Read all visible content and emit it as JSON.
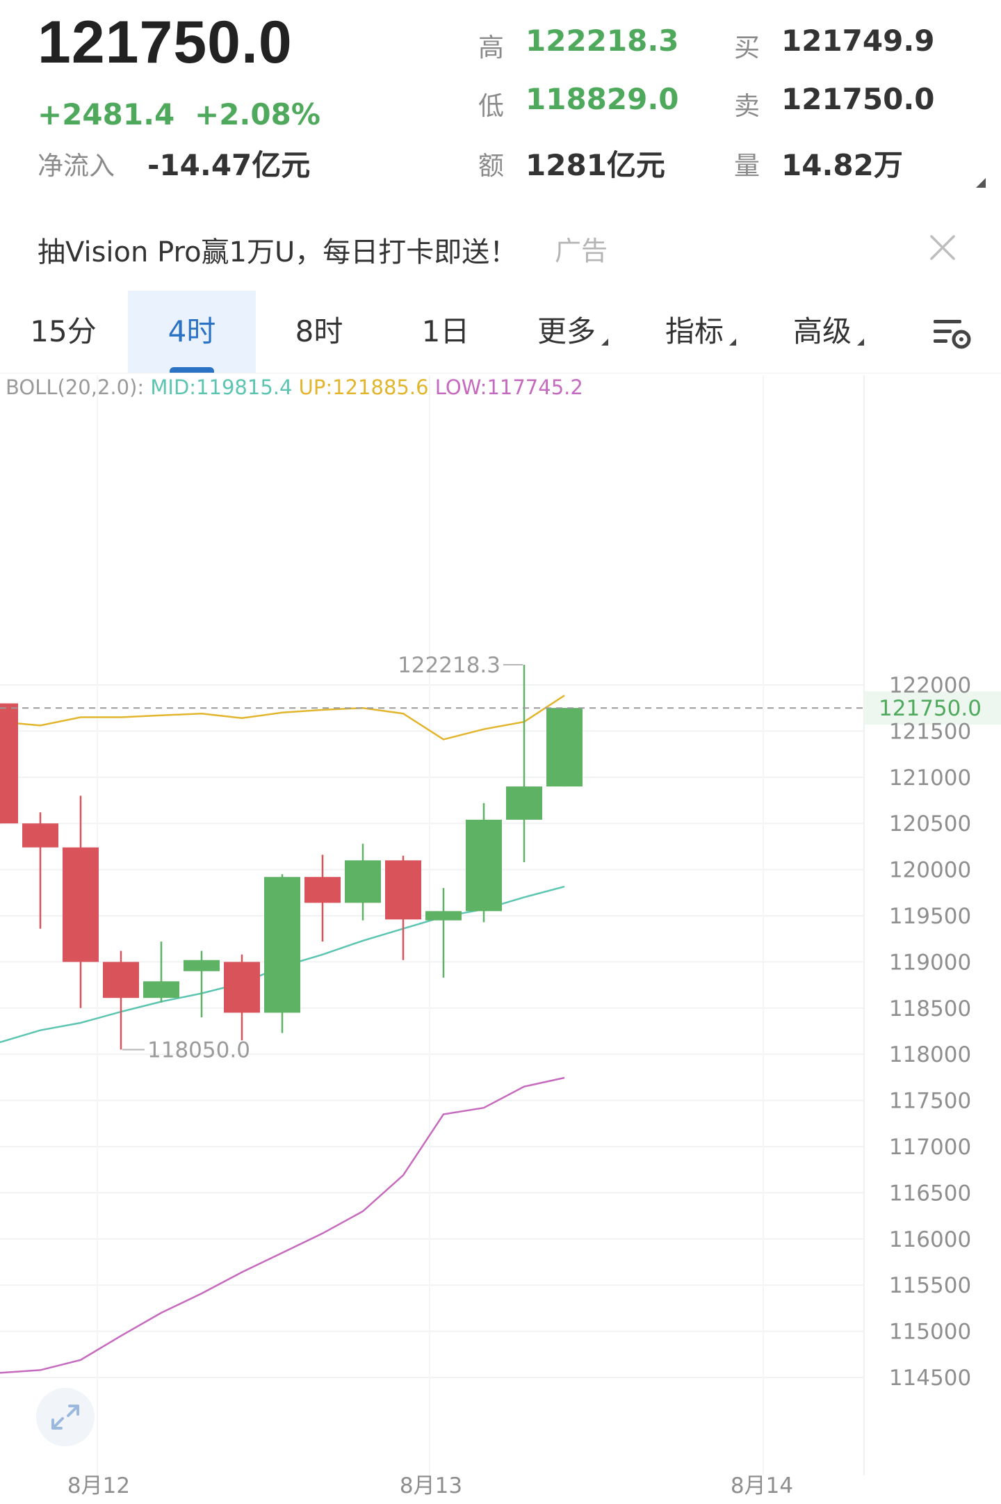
{
  "quote": {
    "last_price": "121750.0",
    "change": "+2481.4",
    "change_pct": "+2.08%",
    "net_inflow_label": "净流入",
    "net_inflow_value": "-14.47亿元"
  },
  "stats": {
    "high_label": "高",
    "high_value": "122218.3",
    "low_label": "低",
    "low_value": "118829.0",
    "amount_label": "额",
    "amount_value": "1281亿元",
    "bid_label": "买",
    "bid_value": "121749.9",
    "ask_label": "卖",
    "ask_value": "121750.0",
    "volume_label": "量",
    "volume_value": "14.82万"
  },
  "ad": {
    "text": "抽Vision Pro赢1万U，每日打卡即送！",
    "tag": "广告"
  },
  "tabs": [
    {
      "label": "15分",
      "active": false
    },
    {
      "label": "4时",
      "active": true
    },
    {
      "label": "8时",
      "active": false
    },
    {
      "label": "1日",
      "active": false
    },
    {
      "label": "更多",
      "active": false,
      "dropdown": true
    },
    {
      "label": "指标",
      "active": false,
      "dropdown": true
    },
    {
      "label": "高级",
      "active": false,
      "dropdown": true
    }
  ],
  "boll": {
    "prefix": "BOLL(20,2.0):",
    "mid": "MID:119815.4",
    "up": "UP:121885.6",
    "low": "LOW:117745.2"
  },
  "colors": {
    "up": "#5db264",
    "down": "#d9545a",
    "mid_line": "#5bc5b1",
    "upper_line": "#e2b52c",
    "lower_line": "#c56abf",
    "active_tab": "#2b72c4"
  },
  "icons": {
    "close": "close-icon",
    "settings": "chart-settings-icon",
    "expand": "expand-icon"
  },
  "chart_data": {
    "type": "candlestick",
    "y_ticks": [
      122000,
      121500,
      121000,
      120500,
      120000,
      119500,
      119000,
      118500,
      118000,
      117500,
      117000,
      116500,
      116000,
      115500,
      115000,
      114500
    ],
    "ylim": [
      114400,
      123400
    ],
    "x_labels": [
      "8月12",
      "8月13",
      "8月14"
    ],
    "current_price_label": "121750.0",
    "high_annotation": "122218.3",
    "low_annotation": "118050.0",
    "candles": [
      {
        "open": 121800,
        "close": 120500,
        "high": 121800,
        "low": 120500
      },
      {
        "open": 120500,
        "close": 120240,
        "high": 120620,
        "low": 119360
      },
      {
        "open": 120240,
        "close": 119000,
        "high": 120800,
        "low": 118500
      },
      {
        "open": 119000,
        "close": 118610,
        "high": 119120,
        "low": 118050
      },
      {
        "open": 118610,
        "close": 118790,
        "high": 119220,
        "low": 118560
      },
      {
        "open": 118900,
        "close": 119020,
        "high": 119120,
        "low": 118400
      },
      {
        "open": 119000,
        "close": 118450,
        "high": 119080,
        "low": 118150
      },
      {
        "open": 118450,
        "close": 119920,
        "high": 119950,
        "low": 118230
      },
      {
        "open": 119920,
        "close": 119640,
        "high": 120160,
        "low": 119220
      },
      {
        "open": 119640,
        "close": 120100,
        "high": 120280,
        "low": 119450
      },
      {
        "open": 120100,
        "close": 119460,
        "high": 120150,
        "low": 119020
      },
      {
        "open": 119450,
        "close": 119550,
        "high": 119800,
        "low": 118830
      },
      {
        "open": 119550,
        "close": 120540,
        "high": 120720,
        "low": 119430
      },
      {
        "open": 120540,
        "close": 120900,
        "high": 122218.3,
        "low": 120080
      },
      {
        "open": 120900,
        "close": 121750,
        "high": 121750,
        "low": 120900
      }
    ],
    "series": [
      {
        "name": "UP",
        "values": [
          121600,
          121560,
          121650,
          121650,
          121670,
          121690,
          121640,
          121700,
          121730,
          121750,
          121690,
          121410,
          121520,
          121600,
          121885.6
        ]
      },
      {
        "name": "MID",
        "values": [
          118130,
          118260,
          118340,
          118460,
          118570,
          118660,
          118770,
          118950,
          119080,
          119230,
          119360,
          119490,
          119570,
          119700,
          119815.4
        ]
      },
      {
        "name": "LOW",
        "values": [
          114550,
          114580,
          114690,
          114950,
          115200,
          115410,
          115640,
          115850,
          116060,
          116300,
          116690,
          117350,
          117420,
          117650,
          117745.2
        ]
      }
    ]
  }
}
